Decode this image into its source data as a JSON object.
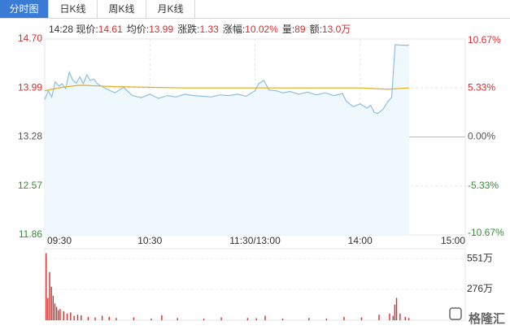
{
  "tabs": [
    "分时图",
    "日K线",
    "周K线",
    "月K线"
  ],
  "info": {
    "time": "14:28",
    "items": [
      {
        "label": "现价:",
        "value": "14.61"
      },
      {
        "label": "均价:",
        "value": "13.99"
      },
      {
        "label": "涨跌:",
        "value": "1.33"
      },
      {
        "label": "涨幅:",
        "value": "10.02%"
      },
      {
        "label": "量:",
        "value": "89"
      },
      {
        "label": "额:",
        "value": "13.0万"
      }
    ]
  },
  "watermark": "格隆汇",
  "chart_data": [
    {
      "type": "line",
      "xlim": [
        0,
        240
      ],
      "xticks": [
        {
          "value": 0,
          "label": "09:30"
        },
        {
          "value": 60,
          "label": "10:30"
        },
        {
          "value": 120,
          "label": "11:30/13:00"
        },
        {
          "value": 180,
          "label": "14:00"
        },
        {
          "value": 240,
          "label": "15:00"
        }
      ],
      "ylim": [
        11.86,
        14.7
      ],
      "yticks": [
        {
          "value": 14.7,
          "label": "14.70"
        },
        13.99,
        13.28,
        12.57,
        11.86
      ],
      "y2lim": [
        -10.67,
        10.67
      ],
      "y2ticks": [
        {
          "value": 10.67,
          "label": "10.67%"
        },
        {
          "value": 5.33,
          "label": "5.33%"
        },
        {
          "value": 0,
          "label": "0.00%"
        },
        {
          "value": -5.33,
          "label": "-5.33%"
        },
        {
          "value": -10.67,
          "label": "-10.67%"
        }
      ],
      "grid": true,
      "up_color": "#d03030",
      "down_color": "#3a8a3a",
      "flat_color": "#555555",
      "area_color": "#eef8fd",
      "series": [
        {
          "color": "#8fbfe0",
          "fill": true,
          "x": [
            0,
            2,
            4,
            6,
            8,
            10,
            12,
            14,
            16,
            18,
            20,
            22,
            24,
            26,
            28,
            30,
            35,
            40,
            45,
            50,
            55,
            60,
            65,
            70,
            75,
            80,
            85,
            90,
            95,
            100,
            105,
            110,
            115,
            120,
            122,
            125,
            128,
            132,
            136,
            140,
            145,
            150,
            155,
            160,
            165,
            170,
            172,
            176,
            180,
            184,
            186,
            188,
            190,
            193,
            196,
            198,
            200,
            203,
            206,
            208
          ],
          "values": [
            13.82,
            13.95,
            13.86,
            14.08,
            14.02,
            14.05,
            13.98,
            14.22,
            14.1,
            14.06,
            14.15,
            14.05,
            14.18,
            14.1,
            14.12,
            14.05,
            13.98,
            13.92,
            14.0,
            13.88,
            13.85,
            13.9,
            13.84,
            13.88,
            13.86,
            13.9,
            13.88,
            13.87,
            13.86,
            13.89,
            13.88,
            13.9,
            13.87,
            13.95,
            14.05,
            14.1,
            13.96,
            13.95,
            13.92,
            13.94,
            13.9,
            13.93,
            13.89,
            13.92,
            13.88,
            13.91,
            13.8,
            13.72,
            13.76,
            13.7,
            13.74,
            13.64,
            13.62,
            13.68,
            13.8,
            13.85,
            14.62,
            14.61,
            14.61,
            14.61
          ]
        },
        {
          "color": "#e0b020",
          "x": [
            0,
            10,
            20,
            30,
            40,
            60,
            80,
            100,
            120,
            140,
            160,
            180,
            196,
            200,
            208
          ],
          "values": [
            13.95,
            14.0,
            14.03,
            14.02,
            14.01,
            14.0,
            13.99,
            13.99,
            13.99,
            13.99,
            13.99,
            13.99,
            13.97,
            13.98,
            13.99
          ]
        }
      ]
    },
    {
      "type": "bar",
      "xlim": [
        0,
        240
      ],
      "ylim": [
        0,
        640
      ],
      "yticks": [
        {
          "value": 551,
          "label": "551万"
        },
        {
          "value": 276,
          "label": "276万"
        }
      ],
      "series": [
        {
          "color": "#d03030",
          "x": [
            0,
            1,
            2,
            3,
            4,
            5,
            6,
            7,
            8,
            10,
            12,
            14,
            16,
            18,
            20,
            24,
            28,
            32,
            36,
            40,
            50,
            60,
            66,
            75,
            90,
            100,
            115,
            120,
            125,
            135,
            150,
            160,
            170,
            180,
            190,
            196,
            198,
            199,
            200,
            202,
            205,
            207
          ],
          "values": [
            600,
            200,
            430,
            300,
            220,
            150,
            120,
            90,
            100,
            80,
            60,
            70,
            40,
            50,
            45,
            30,
            25,
            40,
            30,
            20,
            25,
            15,
            45,
            20,
            15,
            25,
            20,
            18,
            40,
            15,
            20,
            15,
            30,
            25,
            50,
            60,
            40,
            140,
            200,
            60,
            30,
            20
          ]
        }
      ]
    }
  ]
}
